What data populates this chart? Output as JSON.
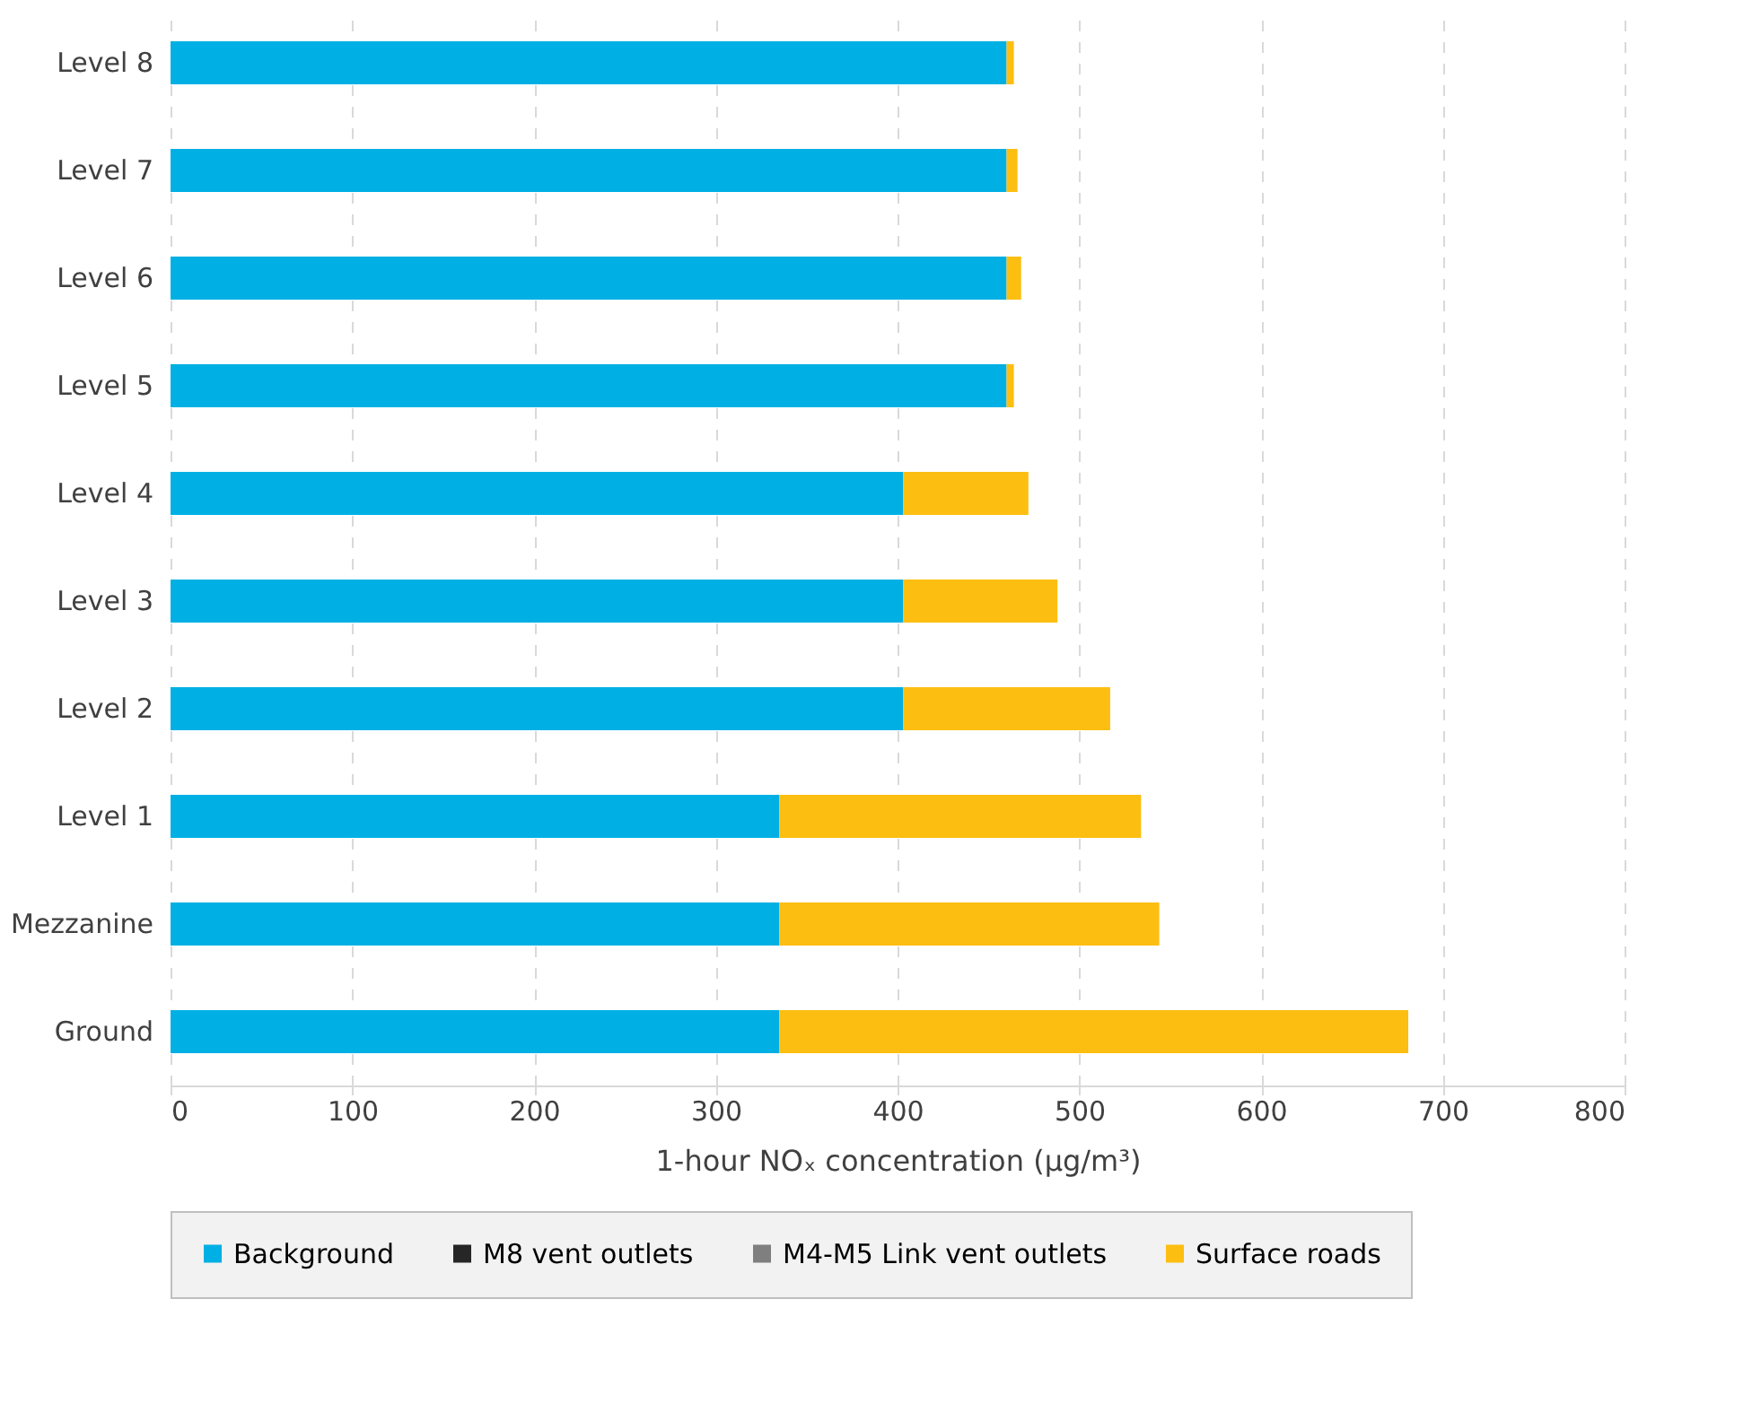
{
  "chart_data": {
    "type": "bar",
    "orientation": "horizontal",
    "stacked": true,
    "categories": [
      "Level 8",
      "Level 7",
      "Level 6",
      "Level 5",
      "Level 4",
      "Level 3",
      "Level 2",
      "Level 1",
      "Mezzanine",
      "Ground"
    ],
    "series": [
      {
        "name": "Background",
        "color": "#00b0e4",
        "values": [
          460,
          460,
          460,
          460,
          403,
          403,
          403,
          335,
          335,
          335
        ]
      },
      {
        "name": "M8 vent outlets",
        "color": "#262626",
        "values": [
          0,
          0,
          0,
          0,
          0,
          0,
          0,
          0,
          0,
          0
        ]
      },
      {
        "name": "M4-M5 Link vent outlets",
        "color": "#7f7f7f",
        "values": [
          0,
          0,
          0,
          0,
          0,
          0,
          0,
          0,
          0,
          0
        ]
      },
      {
        "name": "Surface roads",
        "color": "#fdbe12",
        "values": [
          4,
          6,
          8,
          4,
          69,
          85,
          114,
          199,
          209,
          346
        ]
      }
    ],
    "xlabel": "1-hour NOₓ concentration (µg/m³)",
    "xlim": [
      0,
      800
    ],
    "xticks": [
      0,
      100,
      200,
      300,
      400,
      500,
      600,
      700,
      800
    ],
    "grid": "x",
    "legend": "bottom"
  }
}
